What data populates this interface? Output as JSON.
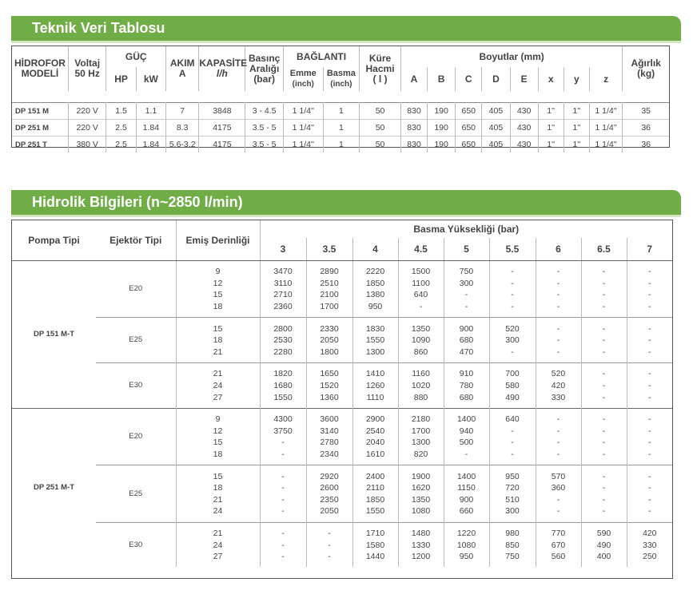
{
  "tech": {
    "title": "Teknik Veri Tablosu",
    "headers": {
      "model_l1": "HİDROFOR",
      "model_l2": "MODELİ",
      "voltaj_l1": "Voltaj",
      "voltaj_l2": "50 Hz",
      "guc": "GÜÇ",
      "hp": "HP",
      "kw": "kW",
      "akim_l1": "AKIM",
      "akim_l2": "A",
      "kapasite_l1": "KAPASİTE",
      "kapasite_l2": "l/h",
      "basinc_l1": "Basınç",
      "basinc_l2": "Aralığı",
      "basinc_l3": "(bar)",
      "baglanti": "BAĞLANTI",
      "emme_l1": "Emme",
      "emme_l2": "(inch)",
      "basma_l1": "Basma",
      "basma_l2": "(inch)",
      "kure_l1": "Küre",
      "kure_l2": "Hacmi",
      "kure_l3": "( l )",
      "boyutlar": "Boyutlar (mm)",
      "dims": [
        "A",
        "B",
        "C",
        "D",
        "E",
        "x",
        "y",
        "z"
      ],
      "agirlik_l1": "Ağırlık",
      "agirlik_l2": "(kg)"
    },
    "rows": [
      [
        "DP 151 M",
        "220 V",
        "1.5",
        "1.1",
        "7",
        "3848",
        "3 - 4.5",
        "1 1/4''",
        "1",
        "50",
        "830",
        "190",
        "650",
        "405",
        "430",
        "1''",
        "1''",
        "1 1/4''",
        "35"
      ],
      [
        "DP 251 M",
        "220 V",
        "2.5",
        "1.84",
        "8.3",
        "4175",
        "3.5 - 5",
        "1 1/4''",
        "1",
        "50",
        "830",
        "190",
        "650",
        "405",
        "430",
        "1''",
        "1''",
        "1 1/4''",
        "36"
      ],
      [
        "DP 251 T",
        "380 V",
        "2.5",
        "1.84",
        "5.6-3.2",
        "4175",
        "3.5 - 5",
        "1 1/4''",
        "1",
        "50",
        "830",
        "190",
        "650",
        "405",
        "430",
        "1''",
        "1''",
        "1 1/4''",
        "36"
      ]
    ]
  },
  "hyd": {
    "title": "Hidrolik Bilgileri (n~2850 l/min)",
    "headers": {
      "pompa": "Pompa Tipi",
      "ejektor": "Ejektör Tipi",
      "emis": "Emiş Derinliği",
      "basma": "Basma Yüksekliği (bar)",
      "bars": [
        "3",
        "3.5",
        "4",
        "4.5",
        "5",
        "5.5",
        "6",
        "6.5",
        "7"
      ]
    },
    "pumps": [
      {
        "name": "DP 151 M-T",
        "groups": [
          {
            "ejector": "E20",
            "rows": [
              [
                "9",
                "3470",
                "2890",
                "2220",
                "1500",
                "750",
                "-",
                "-",
                "-",
                "-"
              ],
              [
                "12",
                "3110",
                "2510",
                "1850",
                "1100",
                "300",
                "-",
                "-",
                "-",
                "-"
              ],
              [
                "15",
                "2710",
                "2100",
                "1380",
                "640",
                "-",
                "-",
                "-",
                "-",
                "-"
              ],
              [
                "18",
                "2360",
                "1700",
                "950",
                "-",
                "-",
                "-",
                "-",
                "-",
                "-"
              ]
            ]
          },
          {
            "ejector": "E25",
            "rows": [
              [
                "15",
                "2800",
                "2330",
                "1830",
                "1350",
                "900",
                "520",
                "-",
                "-",
                "-"
              ],
              [
                "18",
                "2530",
                "2050",
                "1550",
                "1090",
                "680",
                "300",
                "-",
                "-",
                "-"
              ],
              [
                "21",
                "2280",
                "1800",
                "1300",
                "860",
                "470",
                "-",
                "-",
                "-",
                "-"
              ]
            ]
          },
          {
            "ejector": "E30",
            "rows": [
              [
                "21",
                "1820",
                "1650",
                "1410",
                "1160",
                "910",
                "700",
                "520",
                "-",
                "-"
              ],
              [
                "24",
                "1680",
                "1520",
                "1260",
                "1020",
                "780",
                "580",
                "420",
                "-",
                "-"
              ],
              [
                "27",
                "1550",
                "1360",
                "1110",
                "880",
                "680",
                "490",
                "330",
                "-",
                "-"
              ]
            ]
          }
        ]
      },
      {
        "name": "DP 251 M-T",
        "groups": [
          {
            "ejector": "E20",
            "rows": [
              [
                "9",
                "4300",
                "3600",
                "2900",
                "2180",
                "1400",
                "640",
                "-",
                "-",
                "-"
              ],
              [
                "12",
                "3750",
                "3140",
                "2540",
                "1700",
                "940",
                "-",
                "-",
                "-",
                "-"
              ],
              [
                "15",
                "-",
                "2780",
                "2040",
                "1300",
                "500",
                "-",
                "-",
                "-",
                "-"
              ],
              [
                "18",
                "-",
                "2340",
                "1610",
                "820",
                "-",
                "-",
                "-",
                "-",
                "-"
              ]
            ]
          },
          {
            "ejector": "E25",
            "rows": [
              [
                "15",
                "-",
                "2920",
                "2400",
                "1900",
                "1400",
                "950",
                "570",
                "-",
                "-"
              ],
              [
                "18",
                "-",
                "2600",
                "2110",
                "1620",
                "1150",
                "720",
                "360",
                "-",
                "-"
              ],
              [
                "21",
                "-",
                "2350",
                "1850",
                "1350",
                "900",
                "510",
                "-",
                "-",
                "-"
              ],
              [
                "24",
                "-",
                "2050",
                "1550",
                "1080",
                "660",
                "300",
                "-",
                "-",
                "-"
              ]
            ]
          },
          {
            "ejector": "E30",
            "rows": [
              [
                "21",
                "-",
                "-",
                "1710",
                "1480",
                "1220",
                "980",
                "770",
                "590",
                "420"
              ],
              [
                "24",
                "-",
                "-",
                "1580",
                "1330",
                "1080",
                "850",
                "670",
                "490",
                "330"
              ],
              [
                "27",
                "-",
                "-",
                "1440",
                "1200",
                "950",
                "750",
                "560",
                "400",
                "250"
              ]
            ]
          }
        ]
      }
    ]
  },
  "colors": {
    "banner": "#70ad47",
    "banner_shadow": "#d4e6c4"
  }
}
